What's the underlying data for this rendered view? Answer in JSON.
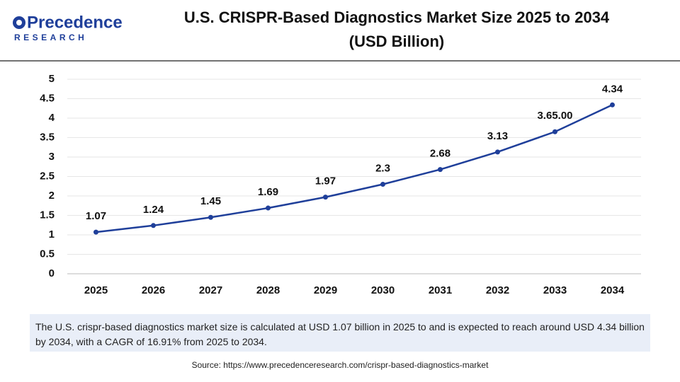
{
  "logo": {
    "name": "Precedence",
    "tagline": "RESEARCH"
  },
  "chart_data": {
    "type": "line",
    "title": "U.S. CRISPR-Based Diagnostics Market Size 2025 to 2034 (USD Billion)",
    "categories": [
      "2025",
      "2026",
      "2027",
      "2028",
      "2029",
      "2030",
      "2031",
      "2032",
      "2033",
      "2034"
    ],
    "values": [
      1.07,
      1.24,
      1.45,
      1.69,
      1.97,
      2.3,
      2.68,
      3.13,
      3.65,
      4.34
    ],
    "value_labels": [
      "1.07",
      "1.24",
      "1.45",
      "1.69",
      "1.97",
      "2.3",
      "2.68",
      "3.13",
      "3.65.00",
      "4.34"
    ],
    "color": "#1f3f9a",
    "ylim": [
      0,
      5
    ],
    "yticks": [
      0,
      0.5,
      1,
      1.5,
      2,
      2.5,
      3,
      3.5,
      4,
      4.5,
      5
    ],
    "grid": true
  },
  "description": "The U.S. crispr-based diagnostics market size is calculated at USD 1.07 billion in 2025 to and is expected to reach around USD 4.34 billion by 2034, with a CAGR of 16.91% from 2025 to 2034.",
  "source": "Source: https://www.precedenceresearch.com/crispr-based-diagnostics-market"
}
